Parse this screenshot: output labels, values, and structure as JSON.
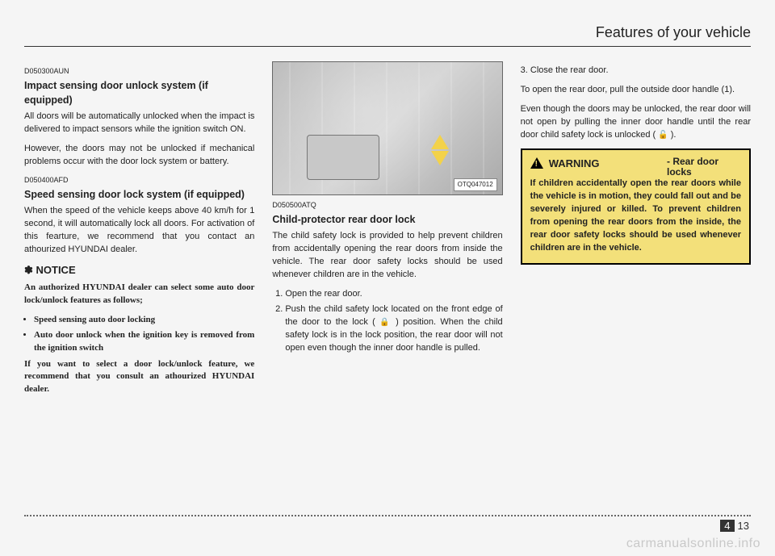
{
  "header": {
    "title": "Features of your vehicle"
  },
  "col1": {
    "s1": {
      "code": "D050300AUN",
      "heading": "Impact sensing door unlock system (if equipped)",
      "p1": "All doors will be automatically unlocked when the impact is delivered to impact sensors while the ignition switch ON.",
      "p2": "However, the doors may not be unlocked if mechanical problems occur with the door lock system or battery."
    },
    "s2": {
      "code": "D050400AFD",
      "heading": "Speed sensing door lock system (if equipped)",
      "p1": "When the speed of the vehicle keeps above 40 km/h for 1 second, it will automatically lock all doors. For activation of this fearture, we recommend that you contact an athourized HYUNDAI dealer."
    },
    "notice": {
      "heading": "✽ NOTICE",
      "p1": "An authorized HYUNDAI dealer can select some auto door lock/unlock features as follows;",
      "b1": "Speed sensing auto door locking",
      "b2": "Auto door unlock when the ignition key is removed from the ignition switch",
      "p2": "If you want to select a door lock/unlock feature, we recommend that you consult an athourized HYUNDAI dealer."
    }
  },
  "col2": {
    "figure": {
      "label": "OTQ047012"
    },
    "code": "D050500ATQ",
    "heading": "Child-protector rear door lock",
    "p1": "The child safety lock is provided to help prevent children from accidentally opening the rear doors from inside the vehicle. The rear door safety locks should be used whenever children are in the vehicle.",
    "li1": "Open the rear door.",
    "li2a": "Push the child safety lock located on the front edge of the door to the lock ( ",
    "li2b": " ) position. When the child safety lock is in the lock position, the rear door will not open even though the inner door handle is pulled."
  },
  "col3": {
    "li3": "3. Close the rear door.",
    "p1": "To open the rear door, pull the outside door handle (1).",
    "p2a": "Even though the doors may be unlocked, the rear door will not open by pulling the inner door handle until the rear door child safety lock is unlocked ( ",
    "p2b": " ).",
    "warn": {
      "heading": "WARNING",
      "sub": "- Rear door locks",
      "body": "If children accidentally open the rear doors while the vehicle is in motion, they could fall out and be severely injured or killed. To prevent children from opening the rear doors from the inside, the rear door safety locks should be used whenever children are in the vehicle."
    }
  },
  "footer": {
    "major": "4",
    "minor": "13"
  },
  "watermark": "carmanualsonline.info",
  "colors": {
    "warn_bg": "#f3e07a",
    "arrow": "#f3d24a",
    "page_bg": "#f5f5f5"
  }
}
